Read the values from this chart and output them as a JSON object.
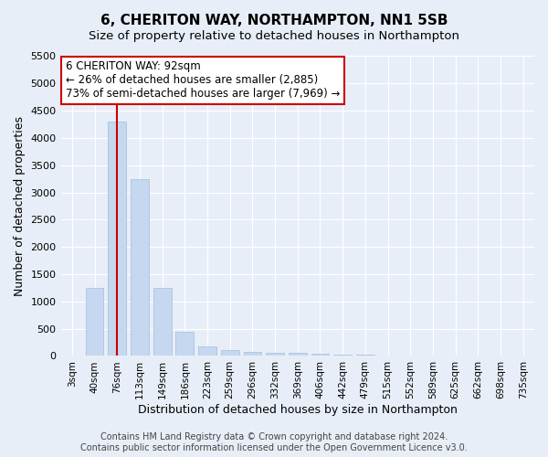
{
  "title": "6, CHERITON WAY, NORTHAMPTON, NN1 5SB",
  "subtitle": "Size of property relative to detached houses in Northampton",
  "xlabel": "Distribution of detached houses by size in Northampton",
  "ylabel": "Number of detached properties",
  "categories": [
    "3sqm",
    "40sqm",
    "76sqm",
    "113sqm",
    "149sqm",
    "186sqm",
    "223sqm",
    "259sqm",
    "296sqm",
    "332sqm",
    "369sqm",
    "406sqm",
    "442sqm",
    "479sqm",
    "515sqm",
    "552sqm",
    "589sqm",
    "625sqm",
    "662sqm",
    "698sqm",
    "735sqm"
  ],
  "values": [
    0,
    1250,
    4300,
    3250,
    1250,
    450,
    175,
    100,
    70,
    60,
    50,
    40,
    30,
    20,
    15,
    10,
    8,
    5,
    3,
    2,
    1
  ],
  "bar_color": "#c5d8f0",
  "bar_edge_color": "#a0bedd",
  "vline_x": 2,
  "vline_color": "#cc0000",
  "annotation_line1": "6 CHERITON WAY: 92sqm",
  "annotation_line2": "← 26% of detached houses are smaller (2,885)",
  "annotation_line3": "73% of semi-detached houses are larger (7,969) →",
  "annotation_box_color": "#cc0000",
  "annotation_box_facecolor": "white",
  "ylim": [
    0,
    5500
  ],
  "yticks": [
    0,
    500,
    1000,
    1500,
    2000,
    2500,
    3000,
    3500,
    4000,
    4500,
    5000,
    5500
  ],
  "background_color": "#e8eef7",
  "plot_bg_color": "#e8eef7",
  "grid_color": "white",
  "footer_text": "Contains HM Land Registry data © Crown copyright and database right 2024.\nContains public sector information licensed under the Open Government Licence v3.0.",
  "title_fontsize": 11,
  "subtitle_fontsize": 9.5,
  "xlabel_fontsize": 9,
  "ylabel_fontsize": 9,
  "annotation_fontsize": 8.5,
  "footer_fontsize": 7,
  "tick_fontsize": 7.5,
  "ytick_fontsize": 8
}
